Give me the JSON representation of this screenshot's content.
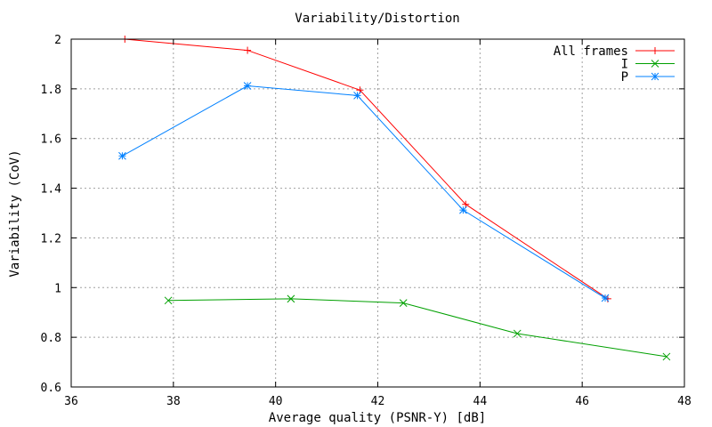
{
  "chart_data": {
    "type": "line",
    "title": "Variability/Distortion",
    "xlabel": "Average quality (PSNR-Y) [dB]",
    "ylabel": "Variability (CoV)",
    "xlim": [
      36,
      48
    ],
    "ylim": [
      0.6,
      2.0
    ],
    "xticks": [
      36,
      38,
      40,
      42,
      44,
      46,
      48
    ],
    "yticks": [
      0.6,
      0.8,
      1.0,
      1.2,
      1.4,
      1.6,
      1.8,
      2.0
    ],
    "xtick_labels": [
      "36",
      "38",
      "40",
      "42",
      "44",
      "46",
      "48"
    ],
    "ytick_labels": [
      "0.6",
      "0.8",
      "1",
      "1.2",
      "1.4",
      "1.6",
      "1.8",
      "2"
    ],
    "grid": true,
    "legend_position": "top-right",
    "series": [
      {
        "name": "All frames",
        "color": "#ff0000",
        "marker": "plus",
        "x": [
          37.05,
          39.45,
          41.65,
          43.72,
          46.5
        ],
        "y": [
          2.0,
          1.955,
          1.795,
          1.335,
          0.955
        ]
      },
      {
        "name": "I",
        "color": "#00a000",
        "marker": "cross",
        "x": [
          37.9,
          40.3,
          42.5,
          44.73,
          47.65
        ],
        "y": [
          0.948,
          0.955,
          0.938,
          0.815,
          0.722
        ]
      },
      {
        "name": "P",
        "color": "#0080ff",
        "marker": "star",
        "x": [
          37.0,
          39.45,
          41.6,
          43.67,
          46.45
        ],
        "y": [
          1.53,
          1.812,
          1.773,
          1.312,
          0.958
        ]
      }
    ]
  }
}
